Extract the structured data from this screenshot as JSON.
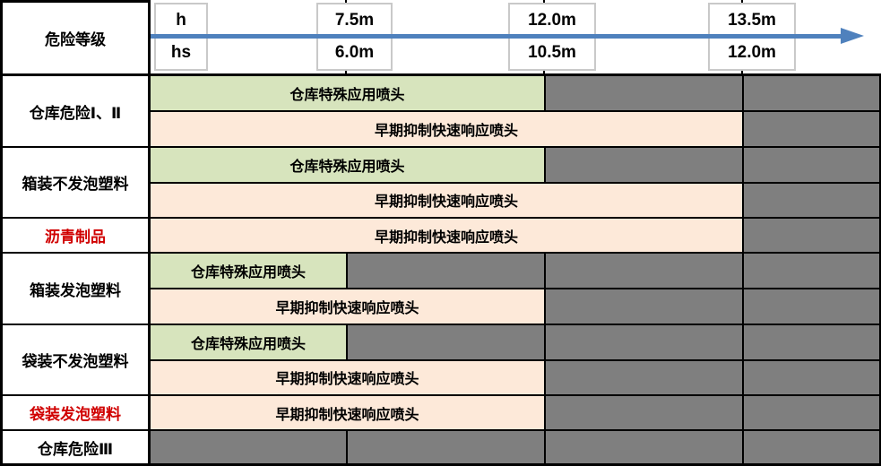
{
  "colors": {
    "bar_green": "#D7E4BD",
    "bar_peach": "#FDE9D9",
    "empty_gray": "#7F7F7F",
    "axis_blue": "#4F81BD",
    "red_label": "#D00000"
  },
  "header": {
    "row_label": "危险等级",
    "legend": {
      "top": "h",
      "bottom": "hs"
    },
    "marks": [
      {
        "h": "7.5m",
        "hs": "6.0m"
      },
      {
        "h": "12.0m",
        "hs": "10.5m"
      },
      {
        "h": "13.5m",
        "hs": "12.0m"
      }
    ]
  },
  "sprinkler_types": {
    "special": "仓库特殊应用喷头",
    "esfr": "早期抑制快速响应喷头"
  },
  "rows": [
    {
      "label": "仓库危险Ⅰ、Ⅱ",
      "red": false,
      "bars": [
        {
          "label": "仓库特殊应用喷头",
          "max_h": "12.0m",
          "max_hs": "10.5m"
        },
        {
          "label": "早期抑制快速响应喷头",
          "max_h": "13.5m",
          "max_hs": "12.0m"
        }
      ]
    },
    {
      "label": "箱装不发泡塑料",
      "red": false,
      "bars": [
        {
          "label": "仓库特殊应用喷头",
          "max_h": "12.0m",
          "max_hs": "10.5m"
        },
        {
          "label": "早期抑制快速响应喷头",
          "max_h": "13.5m",
          "max_hs": "12.0m"
        }
      ]
    },
    {
      "label": "沥青制品",
      "red": true,
      "bars": [
        {
          "label": "早期抑制快速响应喷头",
          "max_h": "13.5m",
          "max_hs": "12.0m"
        }
      ]
    },
    {
      "label": "箱装发泡塑料",
      "red": false,
      "bars": [
        {
          "label": "仓库特殊应用喷头",
          "max_h": "7.5m",
          "max_hs": "6.0m"
        },
        {
          "label": "早期抑制快速响应喷头",
          "max_h": "12.0m",
          "max_hs": "10.5m"
        }
      ]
    },
    {
      "label": "袋装不发泡塑料",
      "red": false,
      "bars": [
        {
          "label": "仓库特殊应用喷头",
          "max_h": "7.5m",
          "max_hs": "6.0m"
        },
        {
          "label": "早期抑制快速响应喷头",
          "max_h": "12.0m",
          "max_hs": "10.5m"
        }
      ]
    },
    {
      "label": "袋装发泡塑料",
      "red": true,
      "bars": [
        {
          "label": "早期抑制快速响应喷头",
          "max_h": "12.0m",
          "max_hs": "10.5m"
        }
      ]
    },
    {
      "label": "仓库危险Ⅲ",
      "red": false,
      "bars": []
    }
  ]
}
